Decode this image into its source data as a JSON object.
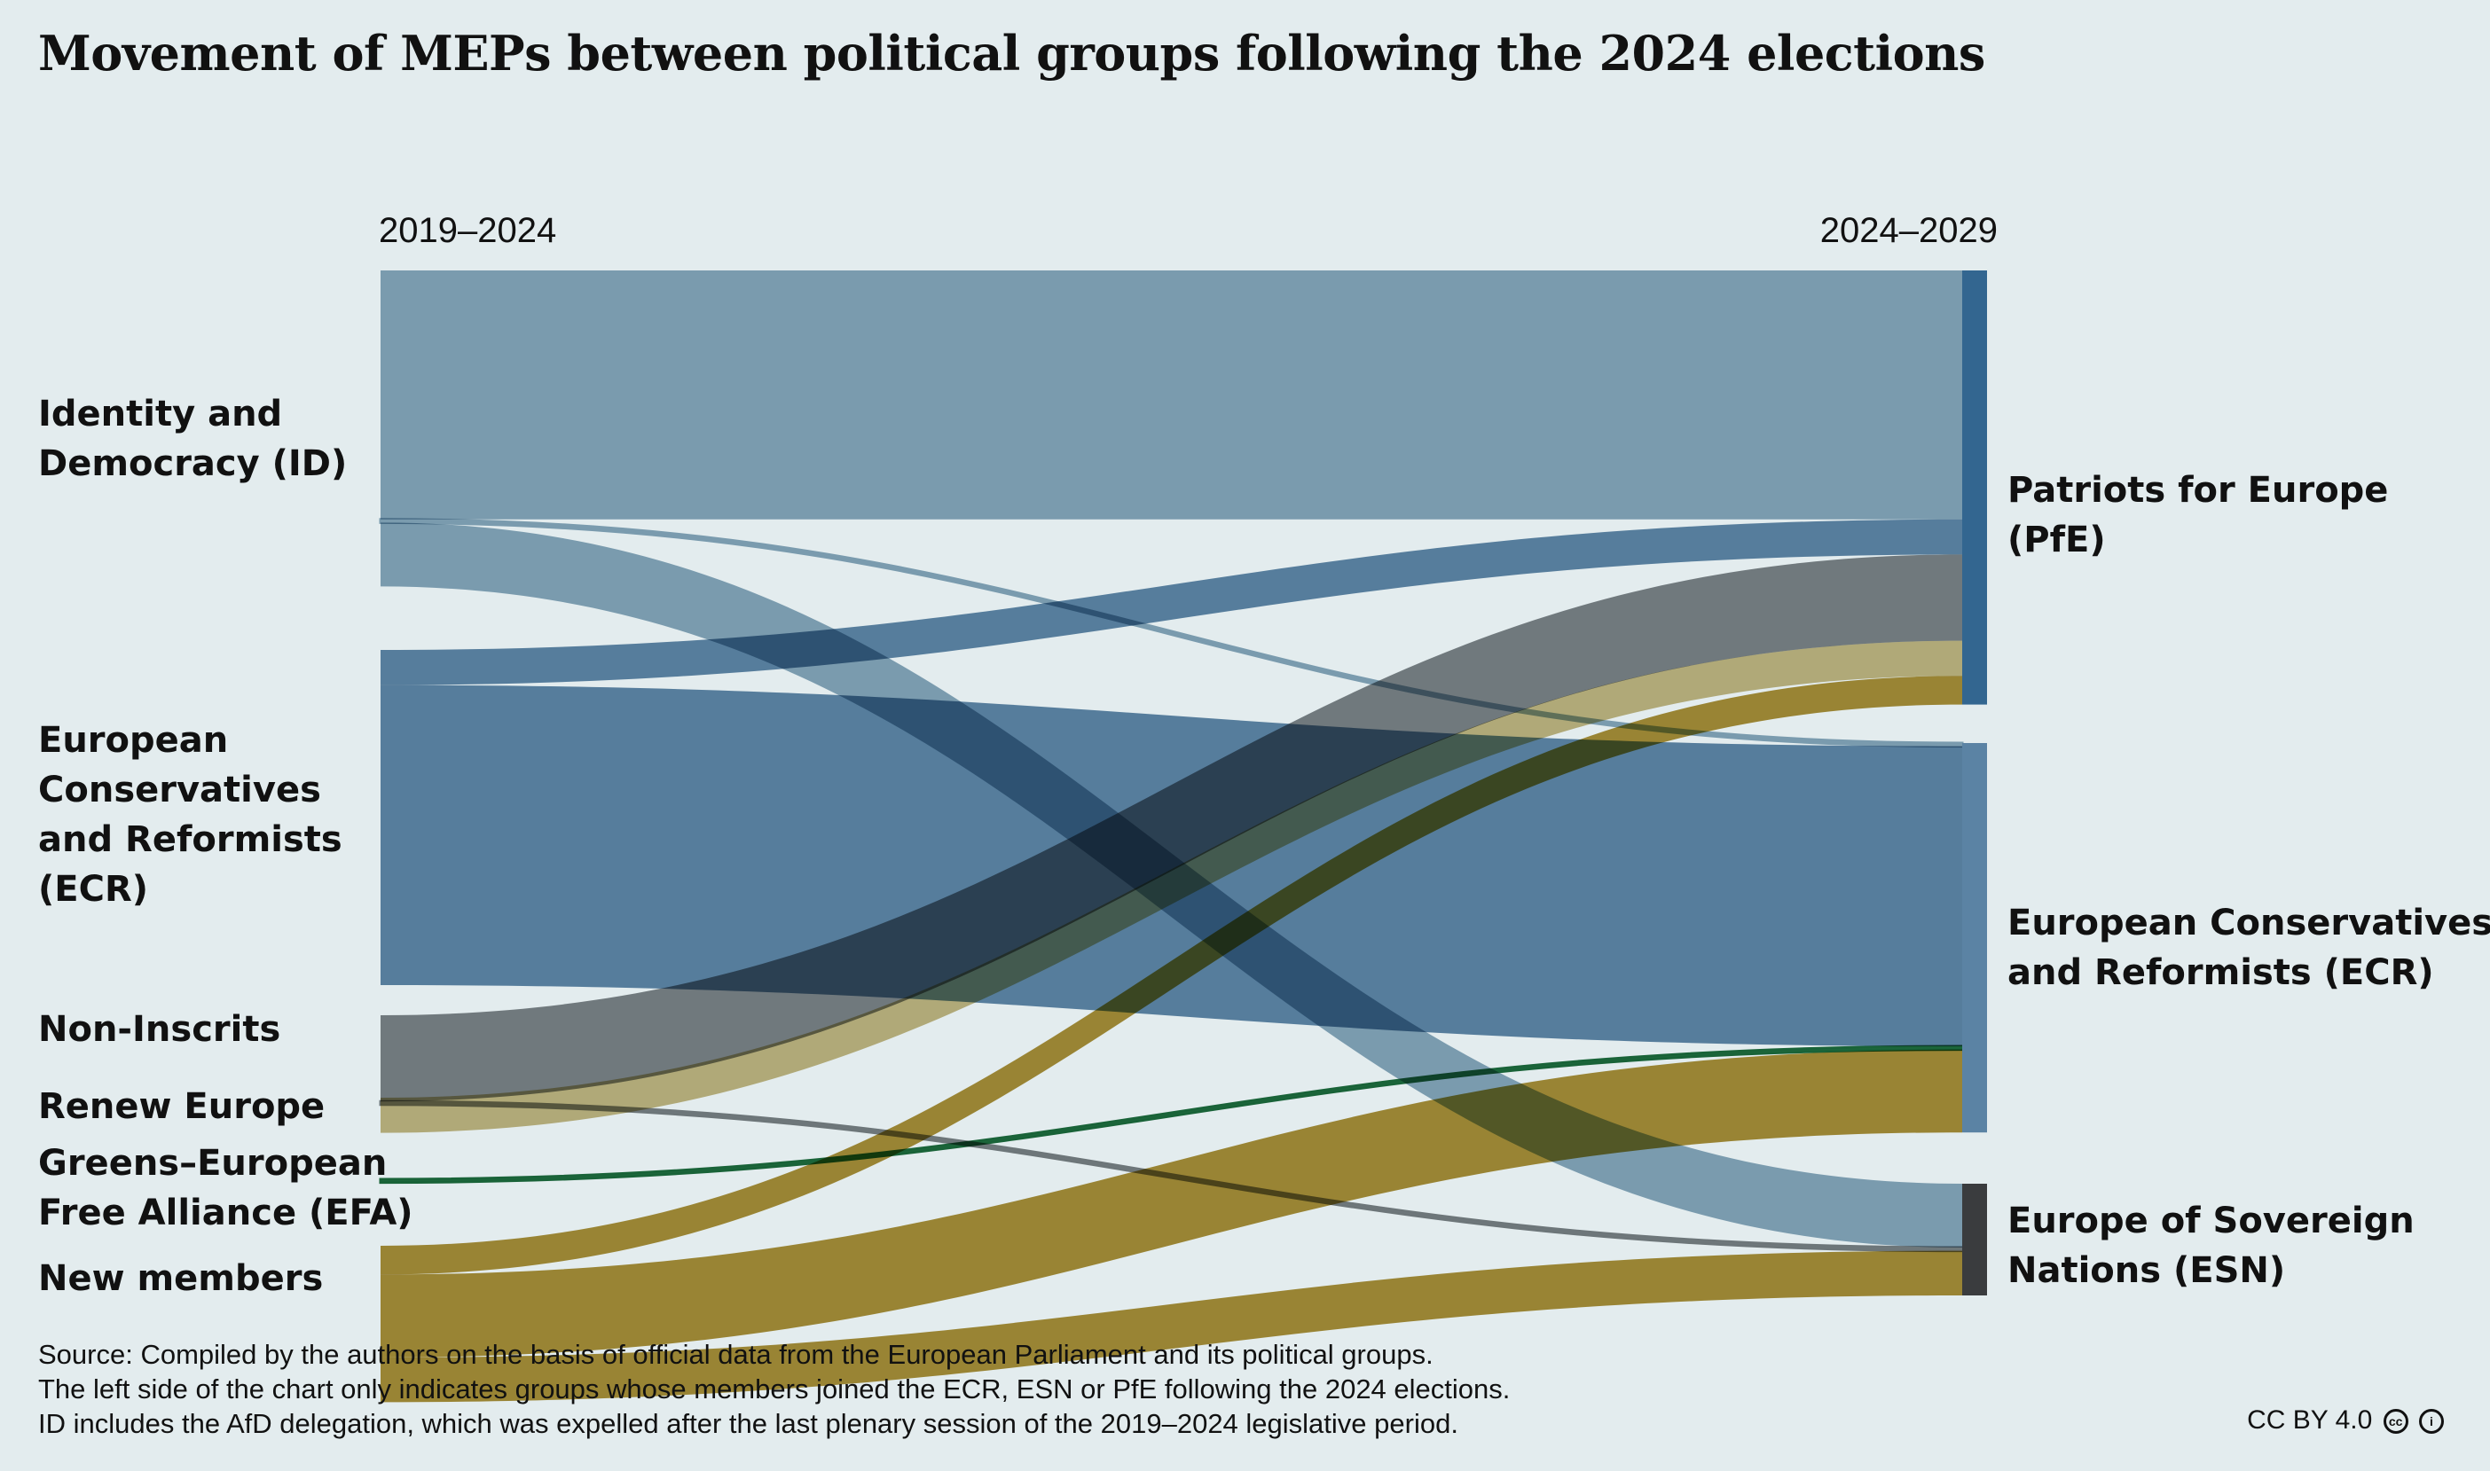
{
  "title": "Movement of MEPs between political groups following the 2024 elections",
  "footer": {
    "line1": "Source: Compiled by the authors on the basis of official data from the European Parliament and its political groups.",
    "line2": "The left side of the chart only indicates groups whose members joined the ECR, ESN or PfE following the 2024 elections.",
    "line3": "ID includes the AfD delegation, which was expelled after the last plenary session of the 2019–2024 legislative period.",
    "license": "CC BY 4.0"
  },
  "colors": {
    "background": "#e3ecee",
    "id_flow": "#89a8bb",
    "ecr_flow": "#5b83a4",
    "ni_flow": "#7a7f82",
    "renew_flow": "#c4b57d",
    "greens_flow": "#1c6b3c",
    "new_flow": "#a98b31",
    "pfe_bar": "#336690",
    "ecr_bar": "#5b83a4",
    "esn_bar": "#3a3c3e"
  },
  "chart_data": {
    "type": "sankey",
    "left_header": "2019–2024",
    "right_header": "2024–2029",
    "sources": [
      {
        "id": "ID",
        "label": "Identity and Democracy (ID)"
      },
      {
        "id": "ECR_old",
        "label": "European Conservatives and Reformists (ECR)"
      },
      {
        "id": "NI",
        "label": "Non-Inscrits"
      },
      {
        "id": "RE",
        "label": "Renew Europe"
      },
      {
        "id": "GEFA",
        "label": "Greens–European Free Alliance (EFA)"
      },
      {
        "id": "NEW",
        "label": "New members"
      }
    ],
    "targets": [
      {
        "id": "PfE",
        "label": "Patriots for Europe (PfE)"
      },
      {
        "id": "ECR",
        "label": "European Conservatives and Reformists (ECR)"
      },
      {
        "id": "ESN",
        "label": "Europe of Sovereign Nations (ESN)"
      }
    ],
    "flows": [
      {
        "from": "ID",
        "to": "PfE",
        "value": 39
      },
      {
        "from": "ID",
        "to": "ECR",
        "value": 0.5
      },
      {
        "from": "ID",
        "to": "ESN",
        "value": 10
      },
      {
        "from": "ECR_old",
        "to": "PfE",
        "value": 5.5
      },
      {
        "from": "ECR_old",
        "to": "ECR",
        "value": 47
      },
      {
        "from": "NI",
        "to": "PfE",
        "value": 13.5
      },
      {
        "from": "NI",
        "to": "ESN",
        "value": 0.5
      },
      {
        "from": "RE",
        "to": "PfE",
        "value": 5.5
      },
      {
        "from": "GEFA",
        "to": "ECR",
        "value": 0.5
      },
      {
        "from": "NEW",
        "to": "PfE",
        "value": 4.5
      },
      {
        "from": "NEW",
        "to": "ECR",
        "value": 13
      },
      {
        "from": "NEW",
        "to": "ESN",
        "value": 7
      }
    ]
  }
}
